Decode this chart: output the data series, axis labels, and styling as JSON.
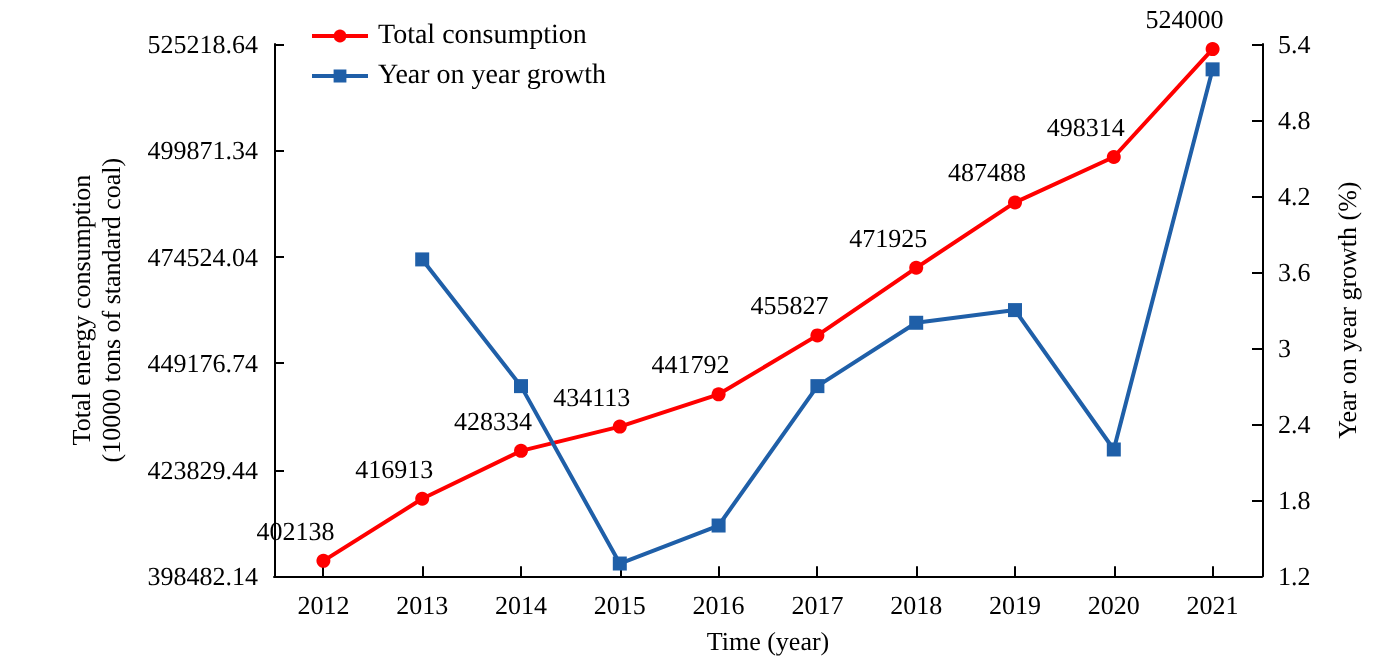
{
  "chart_data": {
    "type": "line",
    "categories": [
      "2012",
      "2013",
      "2014",
      "2015",
      "2016",
      "2017",
      "2018",
      "2019",
      "2020",
      "2021"
    ],
    "xlabel": "Time (year)",
    "ylabel": "Total energy consumption\n(10000 tons of standard coal)",
    "y2label": "Year on year growth (%)",
    "series": [
      {
        "name": "Total consumption",
        "color": "#ff0000",
        "marker": "circle",
        "values": [
          402138,
          416913,
          428334,
          434113,
          441792,
          455827,
          471925,
          487488,
          498314,
          524000
        ],
        "data_labels": true
      },
      {
        "name": "Year on year growth",
        "color": "#1f5fa8",
        "marker": "square",
        "axis": "y2",
        "values": [
          null,
          3.7,
          2.7,
          1.3,
          1.6,
          2.7,
          3.2,
          3.3,
          2.2,
          5.2
        ]
      }
    ],
    "ylim": [
      398482.14,
      525218.64
    ],
    "yticks": [
      398482.14,
      423829.44,
      449176.74,
      474524.04,
      499871.34,
      525218.64
    ],
    "y2lim": [
      1.2,
      5.4
    ],
    "y2ticks": [
      1.2,
      1.8,
      2.4,
      3.0,
      3.6,
      4.2,
      4.8,
      5.4
    ],
    "legend": "top left",
    "grid": false
  }
}
